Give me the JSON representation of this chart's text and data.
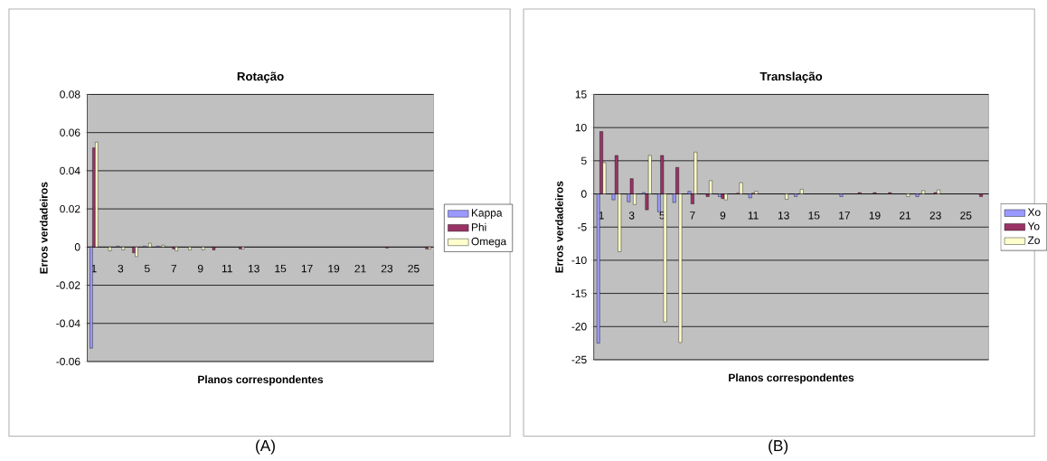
{
  "chart_data": [
    {
      "type": "bar",
      "title": "Rotação",
      "xlabel": "Planos correspondentes",
      "ylabel": "Erros verdadeiros",
      "categories": [
        "1",
        null,
        "3",
        null,
        "5",
        null,
        "7",
        null,
        "9",
        null,
        "11",
        null,
        "13",
        null,
        "15",
        null,
        "17",
        null,
        "19",
        null,
        "21",
        null,
        "23",
        null,
        "25",
        null
      ],
      "series": [
        {
          "name": "Kappa",
          "color": "#9999ff",
          "values": [
            -0.053,
            null,
            0.0005,
            null,
            0.0005,
            0.0005,
            null,
            null,
            null,
            null,
            null,
            null,
            null,
            null,
            null,
            null,
            null,
            null,
            null,
            null,
            null,
            null,
            null,
            null,
            null,
            null
          ]
        },
        {
          "name": "Phi",
          "color": "#993366",
          "values": [
            0.052,
            null,
            null,
            -0.003,
            null,
            null,
            -0.001,
            null,
            null,
            -0.0015,
            null,
            -0.001,
            null,
            null,
            null,
            null,
            null,
            null,
            null,
            null,
            null,
            null,
            -0.0005,
            null,
            null,
            -0.001
          ]
        },
        {
          "name": "Omega",
          "color": "#ffffcc",
          "values": [
            0.055,
            -0.002,
            -0.0015,
            -0.005,
            0.002,
            0.001,
            -0.002,
            -0.0015,
            -0.0015,
            null,
            null,
            -0.001,
            null,
            null,
            null,
            null,
            null,
            null,
            null,
            null,
            null,
            null,
            null,
            null,
            null,
            -0.001
          ]
        }
      ],
      "ylim": [
        -0.06,
        0.08
      ],
      "yticks": [
        -0.06,
        -0.04,
        -0.02,
        0,
        0.02,
        0.04,
        0.06,
        0.08
      ],
      "grid": "y",
      "legend": "right",
      "annotations": [
        "(A)"
      ]
    },
    {
      "type": "bar",
      "title": "Translação",
      "xlabel": "Planos correspondentes",
      "ylabel": "Erros verdadeiros",
      "categories": [
        "1",
        null,
        "3",
        null,
        "5",
        null,
        "7",
        null,
        "9",
        null,
        "11",
        null,
        "13",
        null,
        "15",
        null,
        "17",
        null,
        "19",
        null,
        "21",
        null,
        "23",
        null,
        "25",
        null
      ],
      "series": [
        {
          "name": "Xo",
          "color": "#9999ff",
          "values": [
            -22.5,
            -0.9,
            -1.2,
            0.2,
            -2.7,
            -1.3,
            0.4,
            null,
            -0.4,
            null,
            -0.6,
            null,
            null,
            -0.4,
            null,
            null,
            -0.4,
            null,
            null,
            null,
            null,
            -0.4,
            null,
            null,
            null,
            null
          ]
        },
        {
          "name": "Yo",
          "color": "#993366",
          "values": [
            9.4,
            5.8,
            2.3,
            -2.4,
            5.8,
            4.0,
            -1.5,
            -0.4,
            -0.7,
            0.1,
            0.1,
            null,
            null,
            null,
            null,
            null,
            null,
            0.2,
            0.2,
            0.2,
            null,
            null,
            0.2,
            null,
            null,
            -0.4
          ]
        },
        {
          "name": "Zo",
          "color": "#ffffcc",
          "values": [
            4.7,
            -8.7,
            -1.6,
            5.8,
            -19.3,
            -22.4,
            6.3,
            2.0,
            -0.9,
            1.7,
            0.4,
            null,
            -0.8,
            0.7,
            null,
            null,
            null,
            null,
            null,
            null,
            -0.4,
            0.5,
            0.6,
            null,
            null,
            null
          ]
        }
      ],
      "ylim": [
        -25,
        15
      ],
      "yticks": [
        -25,
        -20,
        -15,
        -10,
        -5,
        0,
        5,
        10,
        15
      ],
      "grid": "y",
      "legend": "right",
      "annotations": [
        "(B)"
      ]
    }
  ]
}
